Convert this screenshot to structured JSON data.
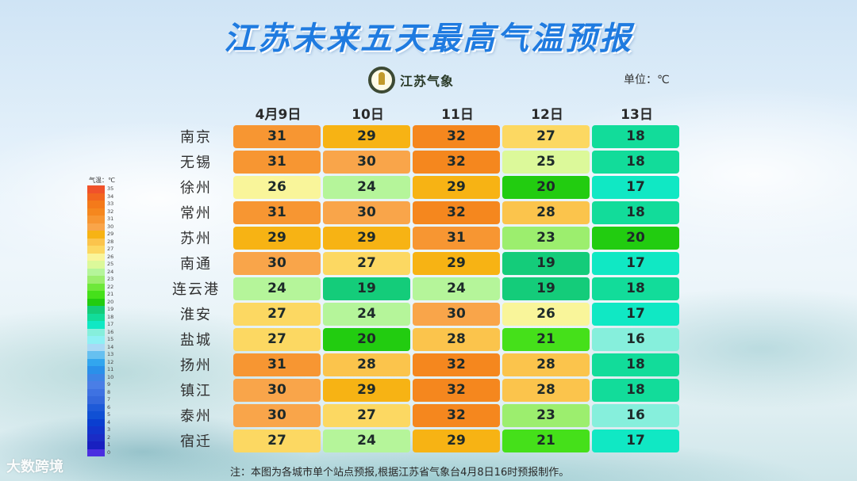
{
  "header": {
    "title": "江苏未来五天最高气温预报",
    "logo_text": "江苏气象",
    "unit": "单位：℃"
  },
  "legend": {
    "title": "气温：℃",
    "items": [
      {
        "label": "35",
        "color": "#f0522a"
      },
      {
        "label": "34",
        "color": "#f2661f"
      },
      {
        "label": "33",
        "color": "#f47a1a"
      },
      {
        "label": "32",
        "color": "#f5871e"
      },
      {
        "label": "31",
        "color": "#f79632"
      },
      {
        "label": "30",
        "color": "#f9a54a"
      },
      {
        "label": "29",
        "color": "#f7b314"
      },
      {
        "label": "28",
        "color": "#fbc44c"
      },
      {
        "label": "27",
        "color": "#fcd862"
      },
      {
        "label": "26",
        "color": "#f9f59a"
      },
      {
        "label": "25",
        "color": "#dcf99a"
      },
      {
        "label": "24",
        "color": "#b5f59a"
      },
      {
        "label": "23",
        "color": "#9cee6e"
      },
      {
        "label": "22",
        "color": "#6ee83a"
      },
      {
        "label": "21",
        "color": "#45e01a"
      },
      {
        "label": "20",
        "color": "#22cc10"
      },
      {
        "label": "19",
        "color": "#14cc7a"
      },
      {
        "label": "18",
        "color": "#12dc9a"
      },
      {
        "label": "17",
        "color": "#10e8c4"
      },
      {
        "label": "16",
        "color": "#86efdc"
      },
      {
        "label": "15",
        "color": "#8ef0f4"
      },
      {
        "label": "14",
        "color": "#a9d9f5"
      },
      {
        "label": "13",
        "color": "#66c0f0"
      },
      {
        "label": "12",
        "color": "#32a6ee"
      },
      {
        "label": "11",
        "color": "#2a90ea"
      },
      {
        "label": "10",
        "color": "#3d84e6"
      },
      {
        "label": "9",
        "color": "#4a7ee6"
      },
      {
        "label": "8",
        "color": "#3e72e2"
      },
      {
        "label": "7",
        "color": "#3468dc"
      },
      {
        "label": "6",
        "color": "#1e5ad8"
      },
      {
        "label": "5",
        "color": "#1050d4"
      },
      {
        "label": "4",
        "color": "#0a3ed0"
      },
      {
        "label": "3",
        "color": "#1234cc"
      },
      {
        "label": "2",
        "color": "#1a2cc6"
      },
      {
        "label": "1",
        "color": "#1820c0"
      },
      {
        "label": "0",
        "color": "#4a2ee0"
      }
    ]
  },
  "table": {
    "columns": [
      "4月9日",
      "10日",
      "11日",
      "12日",
      "13日"
    ],
    "rows": [
      {
        "city": "南京",
        "values": [
          "31",
          "29",
          "32",
          "27",
          "18"
        ],
        "colors": [
          "#f79632",
          "#f7b314",
          "#f5871e",
          "#fcd862",
          "#12dc9a"
        ]
      },
      {
        "city": "无锡",
        "values": [
          "31",
          "30",
          "32",
          "25",
          "18"
        ],
        "colors": [
          "#f79632",
          "#f9a54a",
          "#f5871e",
          "#dcf99a",
          "#12dc9a"
        ]
      },
      {
        "city": "徐州",
        "values": [
          "26",
          "24",
          "29",
          "20",
          "17"
        ],
        "colors": [
          "#f9f59a",
          "#b5f59a",
          "#f7b314",
          "#22cc10",
          "#10e8c4"
        ]
      },
      {
        "city": "常州",
        "values": [
          "31",
          "30",
          "32",
          "28",
          "18"
        ],
        "colors": [
          "#f79632",
          "#f9a54a",
          "#f5871e",
          "#fbc44c",
          "#12dc9a"
        ]
      },
      {
        "city": "苏州",
        "values": [
          "29",
          "29",
          "31",
          "23",
          "20"
        ],
        "colors": [
          "#f7b314",
          "#f7b314",
          "#f79632",
          "#9cee6e",
          "#22cc10"
        ]
      },
      {
        "city": "南通",
        "values": [
          "30",
          "27",
          "29",
          "19",
          "17"
        ],
        "colors": [
          "#f9a54a",
          "#fcd862",
          "#f7b314",
          "#14cc7a",
          "#10e8c4"
        ]
      },
      {
        "city": "连云港",
        "values": [
          "24",
          "19",
          "24",
          "19",
          "18"
        ],
        "colors": [
          "#b5f59a",
          "#14cc7a",
          "#b5f59a",
          "#14cc7a",
          "#12dc9a"
        ]
      },
      {
        "city": "淮安",
        "values": [
          "27",
          "24",
          "30",
          "26",
          "17"
        ],
        "colors": [
          "#fcd862",
          "#b5f59a",
          "#f9a54a",
          "#f9f59a",
          "#10e8c4"
        ]
      },
      {
        "city": "盐城",
        "values": [
          "27",
          "20",
          "28",
          "21",
          "16"
        ],
        "colors": [
          "#fcd862",
          "#22cc10",
          "#fbc44c",
          "#45e01a",
          "#86efdc"
        ]
      },
      {
        "city": "扬州",
        "values": [
          "31",
          "28",
          "32",
          "28",
          "18"
        ],
        "colors": [
          "#f79632",
          "#fbc44c",
          "#f5871e",
          "#fbc44c",
          "#12dc9a"
        ]
      },
      {
        "city": "镇江",
        "values": [
          "30",
          "29",
          "32",
          "28",
          "18"
        ],
        "colors": [
          "#f9a54a",
          "#f7b314",
          "#f5871e",
          "#fbc44c",
          "#12dc9a"
        ]
      },
      {
        "city": "泰州",
        "values": [
          "30",
          "27",
          "32",
          "23",
          "16"
        ],
        "colors": [
          "#f9a54a",
          "#fcd862",
          "#f5871e",
          "#9cee6e",
          "#86efdc"
        ]
      },
      {
        "city": "宿迁",
        "values": [
          "27",
          "24",
          "29",
          "21",
          "17"
        ],
        "colors": [
          "#fcd862",
          "#b5f59a",
          "#f7b314",
          "#45e01a",
          "#10e8c4"
        ]
      }
    ]
  },
  "footnote": "注：本图为各城市单个站点预报,根据江苏省气象台4月8日16时预报制作。",
  "watermark": "大数跨境",
  "chart_data": {
    "type": "heatmap",
    "title": "江苏未来五天最高气温预报",
    "unit": "℃",
    "x": [
      "4月9日",
      "10日",
      "11日",
      "12日",
      "13日"
    ],
    "y": [
      "南京",
      "无锡",
      "徐州",
      "常州",
      "苏州",
      "南通",
      "连云港",
      "淮安",
      "盐城",
      "扬州",
      "镇江",
      "泰州",
      "宿迁"
    ],
    "values": [
      [
        31,
        29,
        32,
        27,
        18
      ],
      [
        31,
        30,
        32,
        25,
        18
      ],
      [
        26,
        24,
        29,
        20,
        17
      ],
      [
        31,
        30,
        32,
        28,
        18
      ],
      [
        29,
        29,
        31,
        23,
        20
      ],
      [
        30,
        27,
        29,
        19,
        17
      ],
      [
        24,
        19,
        24,
        19,
        18
      ],
      [
        27,
        24,
        30,
        26,
        17
      ],
      [
        27,
        20,
        28,
        21,
        16
      ],
      [
        31,
        28,
        32,
        28,
        18
      ],
      [
        30,
        29,
        32,
        28,
        18
      ],
      [
        30,
        27,
        32,
        23,
        16
      ],
      [
        27,
        24,
        29,
        21,
        17
      ]
    ],
    "colorbar": {
      "label": "气温：℃",
      "range": [
        0,
        35
      ]
    },
    "annotation": "注：本图为各城市单个站点预报,根据江苏省气象台4月8日16时预报制作。"
  }
}
